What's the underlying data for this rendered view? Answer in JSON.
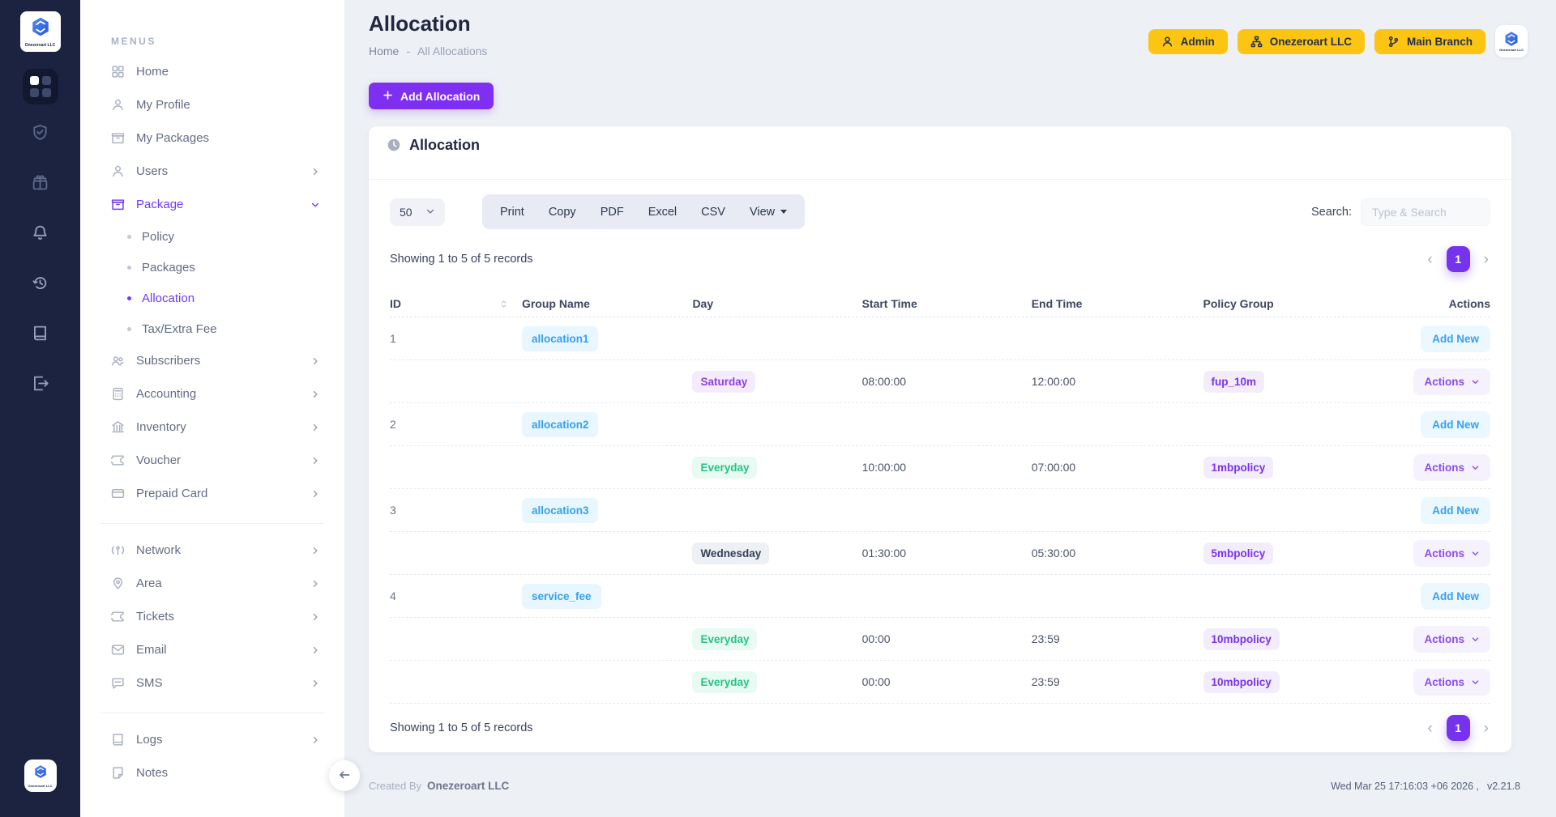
{
  "brand": {
    "logo_text": "Onezeroart LLC"
  },
  "sidebar": {
    "section_label": "MENUS",
    "items": [
      {
        "label": "Home",
        "icon": "grid"
      },
      {
        "label": "My Profile",
        "icon": "user"
      },
      {
        "label": "My Packages",
        "icon": "box"
      },
      {
        "label": "Users",
        "icon": "user",
        "chevron": true
      },
      {
        "label": "Package",
        "icon": "box",
        "active": true,
        "expanded": true,
        "children": [
          {
            "label": "Policy"
          },
          {
            "label": "Packages"
          },
          {
            "label": "Allocation",
            "active": true
          },
          {
            "label": "Tax/Extra Fee"
          }
        ]
      },
      {
        "label": "Subscribers",
        "icon": "users",
        "chevron": true
      },
      {
        "label": "Accounting",
        "icon": "calc",
        "chevron": true
      },
      {
        "label": "Inventory",
        "icon": "bank",
        "chevron": true
      },
      {
        "label": "Voucher",
        "icon": "ticket",
        "chevron": true
      },
      {
        "label": "Prepaid Card",
        "icon": "card",
        "chevron": true
      },
      {
        "divider": true
      },
      {
        "label": "Network",
        "icon": "antenna",
        "chevron": true
      },
      {
        "label": "Area",
        "icon": "pin",
        "chevron": true
      },
      {
        "label": "Tickets",
        "icon": "ticket",
        "chevron": true
      },
      {
        "label": "Email",
        "icon": "mail",
        "chevron": true
      },
      {
        "label": "SMS",
        "icon": "chat",
        "chevron": true
      },
      {
        "divider": true
      },
      {
        "label": "Logs",
        "icon": "book",
        "chevron": true
      },
      {
        "label": "Notes",
        "icon": "note"
      }
    ]
  },
  "topbar": {
    "buttons": [
      {
        "label": "Admin",
        "icon": "user"
      },
      {
        "label": "Onezeroart LLC",
        "icon": "sitemap"
      },
      {
        "label": "Main Branch",
        "icon": "branch"
      }
    ]
  },
  "page": {
    "title": "Allocation",
    "breadcrumb_home": "Home",
    "breadcrumb_sep": "-",
    "breadcrumb_current": "All Allocations",
    "add_button_label": "Add Allocation"
  },
  "panel": {
    "title": "Allocation",
    "page_size": "50",
    "export_buttons": [
      "Print",
      "Copy",
      "PDF",
      "Excel",
      "CSV"
    ],
    "view_button": "View",
    "search_label": "Search:",
    "search_placeholder": "Type & Search",
    "showing_text": "Showing 1 to 5 of 5 records",
    "pagination_current": "1",
    "table": {
      "headers": [
        "ID",
        "Group Name",
        "Day",
        "Start Time",
        "End Time",
        "Policy Group",
        "Actions"
      ],
      "add_new_label": "Add New",
      "actions_label": "Actions",
      "groups": [
        {
          "id": "1",
          "name": "allocation1",
          "schedules": [
            {
              "day": "Saturday",
              "day_style": "purple",
              "start": "08:00:00",
              "end": "12:00:00",
              "policy": "fup_10m"
            }
          ]
        },
        {
          "id": "2",
          "name": "allocation2",
          "schedules": [
            {
              "day": "Everyday",
              "day_style": "green",
              "start": "10:00:00",
              "end": "07:00:00",
              "policy": "1mbpolicy"
            }
          ]
        },
        {
          "id": "3",
          "name": "allocation3",
          "schedules": [
            {
              "day": "Wednesday",
              "day_style": "gray",
              "start": "01:30:00",
              "end": "05:30:00",
              "policy": "5mbpolicy"
            }
          ]
        },
        {
          "id": "4",
          "name": "service_fee",
          "schedules": [
            {
              "day": "Everyday",
              "day_style": "green",
              "start": "00:00",
              "end": "23:59",
              "policy": "10mbpolicy"
            },
            {
              "day": "Everyday",
              "day_style": "green",
              "start": "00:00",
              "end": "23:59",
              "policy": "10mbpolicy"
            }
          ]
        }
      ]
    }
  },
  "footer": {
    "created_by_label": "Created By",
    "created_by": "Onezeroart LLC",
    "timestamp": "Wed Mar 25 17:16:03 +06 2026 ,",
    "version": "v2.21.8"
  },
  "colors": {
    "rail_navy": "#1b2340",
    "accent_purple": "#7e2ff2",
    "accent_yellow": "#fdc513",
    "link_blue": "#35a0f0",
    "green": "#27c284"
  }
}
